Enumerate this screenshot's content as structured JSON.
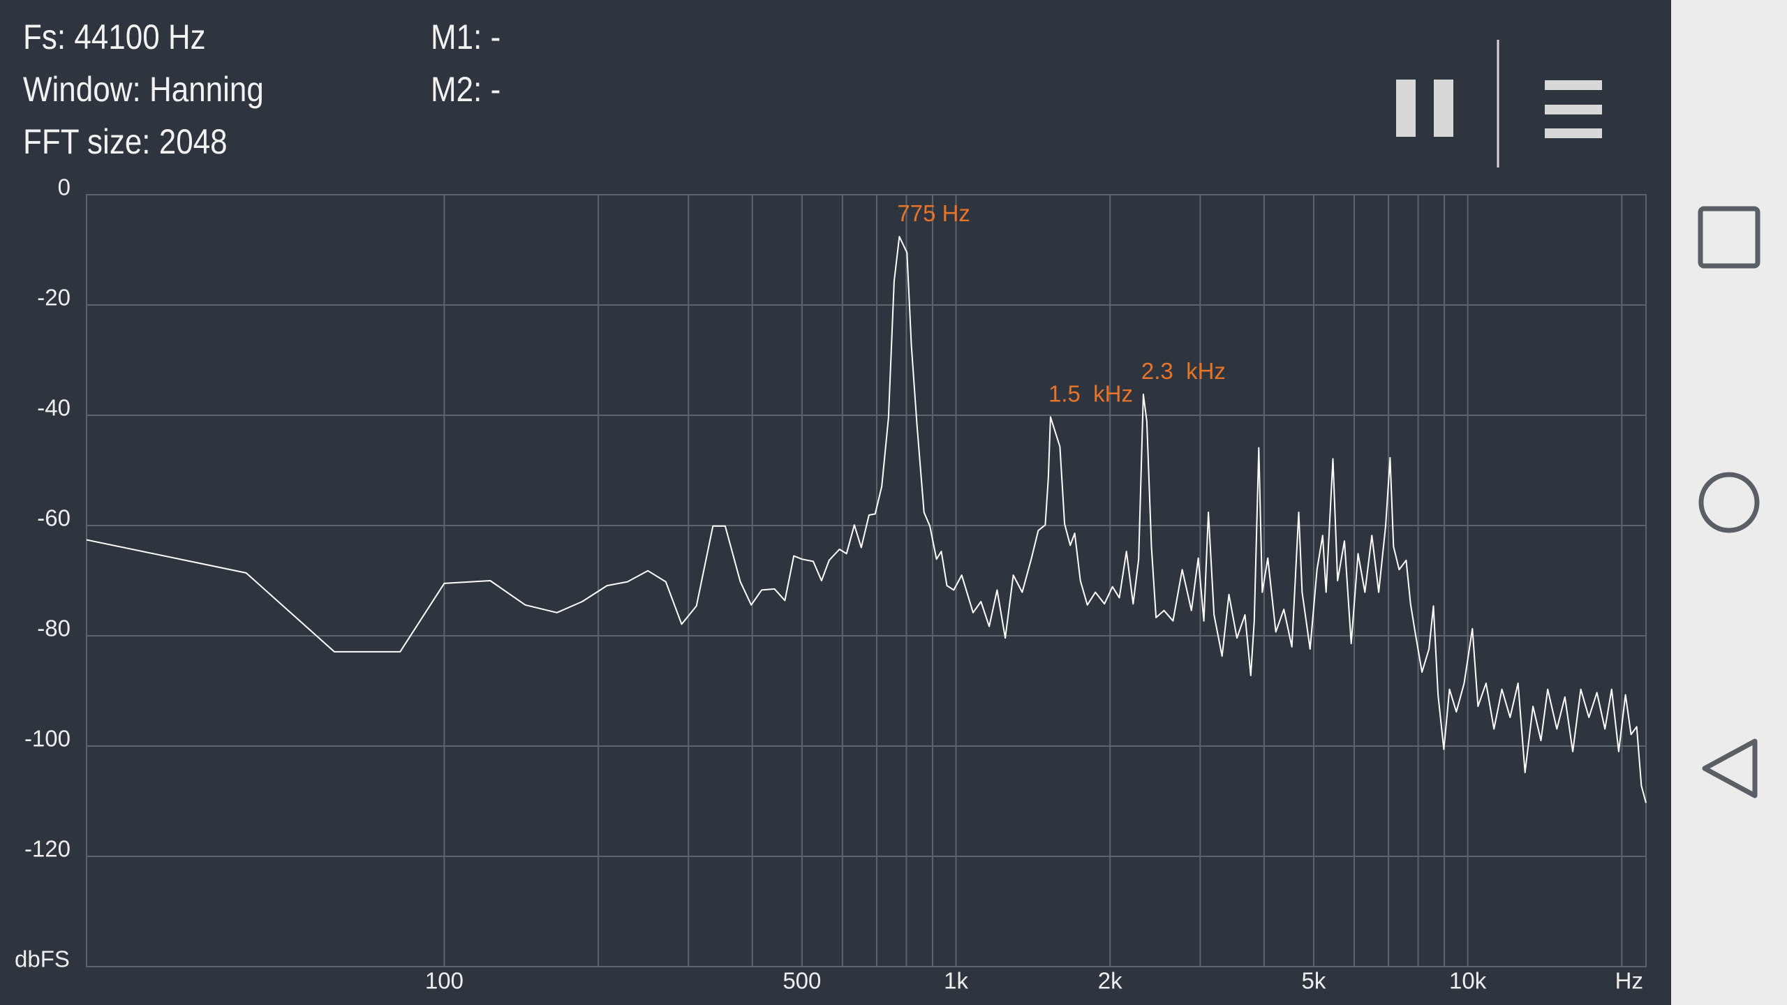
{
  "status": {
    "fs": "Fs: 44100 Hz",
    "window": "Window: Hanning",
    "fft": "FFT size: 2048",
    "m1": "M1: -",
    "m2": "M2: -"
  },
  "chart_data": {
    "type": "line",
    "x_scale": "log",
    "xlim": [
      20,
      22300
    ],
    "ylim": [
      -140,
      0
    ],
    "xticks": [
      100,
      500,
      {
        "value": 1000,
        "label": "1k"
      },
      {
        "value": 2000,
        "label": "2k"
      },
      {
        "value": 5000,
        "label": "5k"
      },
      {
        "value": 10000,
        "label": "10k"
      }
    ],
    "xminorticks": [
      200,
      300,
      400,
      600,
      700,
      800,
      900,
      3000,
      4000,
      6000,
      7000,
      8000,
      9000,
      20000
    ],
    "yticks": [
      0,
      -20,
      -40,
      -60,
      -80,
      -100,
      -120
    ],
    "x_label": "Hz",
    "y_label": "dbFS",
    "grid": true,
    "x": [
      20,
      41,
      61,
      82,
      100,
      123,
      144,
      166,
      186,
      208,
      228,
      250,
      271,
      291,
      311,
      335,
      354,
      379,
      398,
      417,
      442,
      463,
      482,
      500,
      526,
      546,
      565,
      592,
      611,
      633,
      653,
      676,
      695,
      716,
      738,
      757,
      775,
      802,
      818,
      839,
      866,
      889,
      916,
      936,
      960,
      990,
      1026,
      1080,
      1119,
      1161,
      1203,
      1248,
      1294,
      1347,
      1403,
      1448,
      1494,
      1515,
      1530,
      1596,
      1630,
      1672,
      1706,
      1750,
      1806,
      1872,
      1950,
      2022,
      2085,
      2153,
      2219,
      2275,
      2323,
      2360,
      2409,
      2460,
      2549,
      2655,
      2767,
      2884,
      2974,
      3050,
      3113,
      3193,
      3311,
      3414,
      3540,
      3670,
      3767,
      3826,
      3906,
      3967,
      4067,
      4216,
      4371,
      4532,
      4674,
      4746,
      4920,
      5075,
      5206,
      5287,
      5452,
      5568,
      5741,
      5919,
      6104,
      6296,
      6496,
      6700,
      6910,
      7050,
      7160,
      7345,
      7578,
      7730,
      7890,
      8140,
      8400,
      8570,
      8750,
      8980,
      9210,
      9500,
      9840,
      10210,
      10470,
      10860,
      11250,
      11660,
      12100,
      12540,
      12940,
      13410,
      13900,
      14330,
      14930,
      15480,
      16040,
      16630,
      17250,
      17880,
      18540,
      19110,
      19720,
      20330,
      20850,
      21390,
      21840,
      22300
    ],
    "series": [
      {
        "color": "#ffffff",
        "values": [
          -62.6,
          -68.6,
          -82.9,
          -82.9,
          -70.5,
          -70.0,
          -74.4,
          -75.8,
          -73.8,
          -70.9,
          -70.2,
          -68.2,
          -70.2,
          -77.9,
          -74.6,
          -60.1,
          -60.1,
          -70.2,
          -74.4,
          -71.7,
          -71.5,
          -73.6,
          -65.5,
          -66.1,
          -66.5,
          -70.0,
          -66.3,
          -64.3,
          -65.1,
          -59.9,
          -64.0,
          -58.1,
          -57.9,
          -52.9,
          -40.5,
          -15.7,
          -7.6,
          -10.5,
          -27.3,
          -41.7,
          -57.6,
          -60.1,
          -66.1,
          -64.7,
          -70.9,
          -71.7,
          -69.0,
          -75.8,
          -73.8,
          -78.3,
          -71.7,
          -80.4,
          -69.0,
          -72.1,
          -66.1,
          -60.9,
          -59.9,
          -51.4,
          -40.3,
          -45.7,
          -59.7,
          -63.6,
          -61.4,
          -70.0,
          -74.4,
          -72.1,
          -74.2,
          -71.1,
          -73.1,
          -64.7,
          -74.2,
          -66.1,
          -36.2,
          -41.1,
          -63.8,
          -76.7,
          -75.4,
          -77.3,
          -68.0,
          -75.4,
          -65.9,
          -77.3,
          -57.6,
          -76.2,
          -83.7,
          -72.5,
          -80.4,
          -76.2,
          -87.2,
          -77.3,
          -45.9,
          -72.1,
          -65.9,
          -79.3,
          -75.2,
          -82.0,
          -57.6,
          -72.1,
          -82.4,
          -68.0,
          -61.8,
          -72.1,
          -47.9,
          -70.0,
          -62.8,
          -81.4,
          -65.1,
          -72.1,
          -61.8,
          -72.1,
          -60.1,
          -47.7,
          -63.8,
          -68.0,
          -66.3,
          -74.2,
          -79.3,
          -86.6,
          -82.4,
          -74.6,
          -90.7,
          -100.6,
          -89.7,
          -93.8,
          -88.6,
          -78.7,
          -92.8,
          -88.6,
          -96.9,
          -89.7,
          -94.8,
          -88.6,
          -104.8,
          -92.8,
          -99.0,
          -89.7,
          -96.9,
          -91.1,
          -101.0,
          -89.7,
          -94.8,
          -90.3,
          -96.9,
          -89.7,
          -101.0,
          -90.7,
          -97.9,
          -96.5,
          -107.2,
          -110.3
        ]
      }
    ],
    "annotation_color": "#e8742a",
    "annotations": [
      {
        "text": "775 Hz",
        "x": 775,
        "y": -7.6
      },
      {
        "text": "1.5  kHz",
        "x": 1530,
        "y": -40.3
      },
      {
        "text": "2.3  kHz",
        "x": 2323,
        "y": -36.2
      }
    ]
  }
}
